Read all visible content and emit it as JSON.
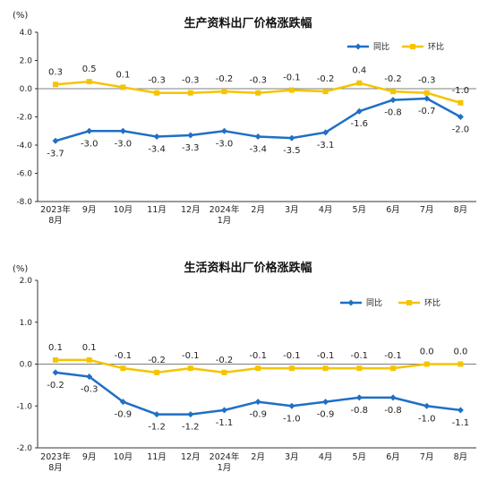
{
  "chart_data": [
    {
      "type": "line",
      "title": "生产资料出厂价格涨跌幅",
      "unit_label": "(%)",
      "categories": [
        "2023年\n8月",
        "9月",
        "10月",
        "11月",
        "12月",
        "2024年\n1月",
        "2月",
        "3月",
        "4月",
        "5月",
        "6月",
        "7月",
        "8月"
      ],
      "ylim": [
        -8.0,
        4.0
      ],
      "yticks": [
        "4.0",
        "2.0",
        "0.0",
        "-2.0",
        "-4.0",
        "-6.0",
        "-8.0"
      ],
      "ytick_values": [
        4,
        2,
        0,
        -2,
        -4,
        -6,
        -8
      ],
      "legend_position": "top-right",
      "series": [
        {
          "name": "同比",
          "color": "#1f6fc5",
          "marker": "diamond",
          "label_position": "below",
          "values": [
            -3.7,
            -3.0,
            -3.0,
            -3.4,
            -3.3,
            -3.0,
            -3.4,
            -3.5,
            -3.1,
            -1.6,
            -0.8,
            -0.7,
            -2.0
          ],
          "labels": [
            "-3.7",
            "-3.0",
            "-3.0",
            "-3.4",
            "-3.3",
            "-3.0",
            "-3.4",
            "-3.5",
            "-3.1",
            "-1.6",
            "-0.8",
            "-0.7",
            "-2.0"
          ]
        },
        {
          "name": "环比",
          "color": "#f5c400",
          "marker": "square",
          "label_position": "above",
          "values": [
            0.3,
            0.5,
            0.1,
            -0.3,
            -0.3,
            -0.2,
            -0.3,
            -0.1,
            -0.2,
            0.4,
            -0.2,
            -0.3,
            -1.0
          ],
          "labels": [
            "0.3",
            "0.5",
            "0.1",
            "-0.3",
            "-0.3",
            "-0.2",
            "-0.3",
            "-0.1",
            "-0.2",
            "0.4",
            "-0.2",
            "-0.3",
            "-1.0"
          ]
        }
      ]
    },
    {
      "type": "line",
      "title": "生活资料出厂价格涨跌幅",
      "unit_label": "(%)",
      "categories": [
        "2023年\n8月",
        "9月",
        "10月",
        "11月",
        "12月",
        "2024年\n1月",
        "2月",
        "3月",
        "4月",
        "5月",
        "6月",
        "7月",
        "8月"
      ],
      "ylim": [
        -2.0,
        2.0
      ],
      "yticks": [
        "2.0",
        "1.0",
        "0.0",
        "-1.0",
        "-2.0"
      ],
      "ytick_values": [
        2,
        1,
        0,
        -1,
        -2
      ],
      "legend_position": "top-right",
      "series": [
        {
          "name": "同比",
          "color": "#1f6fc5",
          "marker": "diamond",
          "label_position": "below",
          "values": [
            -0.2,
            -0.3,
            -0.9,
            -1.2,
            -1.2,
            -1.1,
            -0.9,
            -1.0,
            -0.9,
            -0.8,
            -0.8,
            -1.0,
            -1.1
          ],
          "labels": [
            "-0.2",
            "-0.3",
            "-0.9",
            "-1.2",
            "-1.2",
            "-1.1",
            "-0.9",
            "-1.0",
            "-0.9",
            "-0.8",
            "-0.8",
            "-1.0",
            "-1.1"
          ]
        },
        {
          "name": "环比",
          "color": "#f5c400",
          "marker": "square",
          "label_position": "above",
          "values": [
            0.1,
            0.1,
            -0.1,
            -0.2,
            -0.1,
            -0.2,
            -0.1,
            -0.1,
            -0.1,
            -0.1,
            -0.1,
            0.0,
            0.0
          ],
          "labels": [
            "0.1",
            "0.1",
            "-0.1",
            "-0.2",
            "-0.1",
            "-0.2",
            "-0.1",
            "-0.1",
            "-0.1",
            "-0.1",
            "-0.1",
            "0.0",
            "0.0"
          ]
        }
      ]
    }
  ]
}
